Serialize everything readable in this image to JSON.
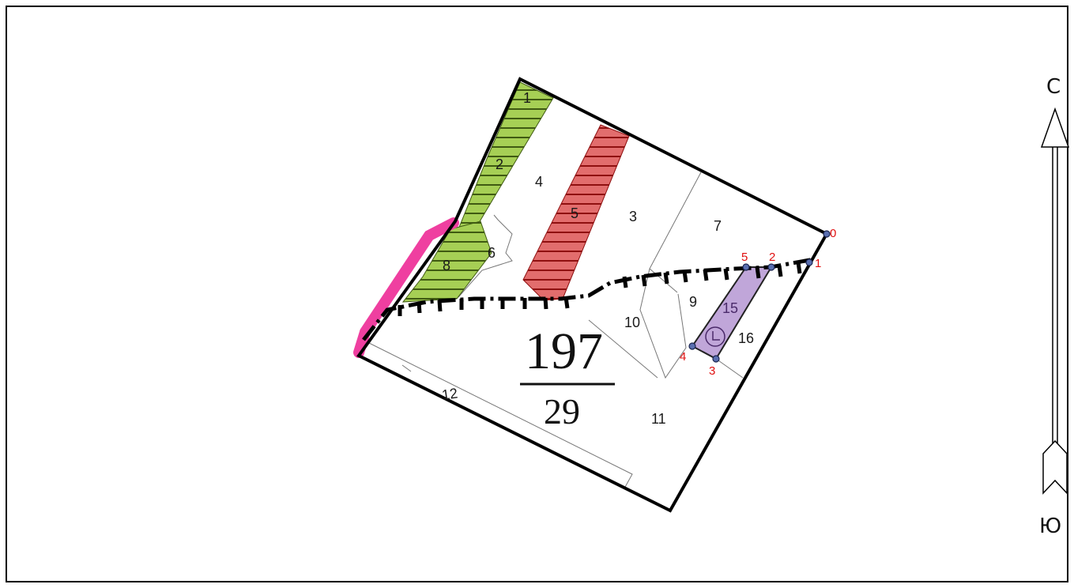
{
  "plot": {
    "numerator": "197",
    "denominator": "29"
  },
  "compass": {
    "north": "С",
    "south": "Ю"
  },
  "parcels": {
    "p1": "1",
    "p2": "2",
    "p3": "3",
    "p4": "4",
    "p5": "5",
    "p6": "6",
    "p7": "7",
    "p8": "8",
    "p9": "9",
    "p10": "10",
    "p11": "11",
    "p12": "12",
    "p15": "15",
    "p16": "16"
  },
  "points": {
    "pt0": "0",
    "pt1": "1",
    "pt2": "2",
    "pt3": "3",
    "pt4": "4",
    "pt5": "5"
  },
  "colors": {
    "green_zone": "#a6cf55",
    "red_zone": "#e26d6d",
    "purple_zone": "#b596d2",
    "pink_edge": "#ef3fa0",
    "boundary": "#000000",
    "point_label": "#e01010"
  }
}
